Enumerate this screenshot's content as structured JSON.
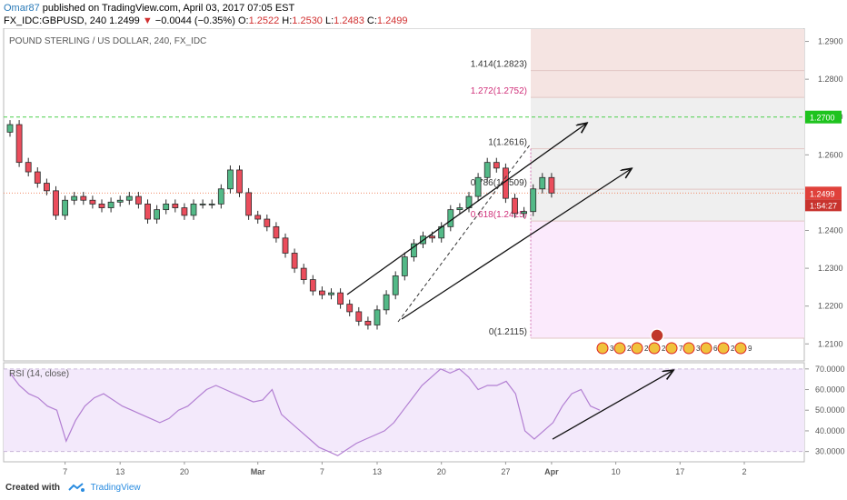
{
  "header": {
    "author": "Omar87",
    "published_text": " published on TradingView.com, April 03, 2017 07:05 EST",
    "symbol_line": "FX_IDC:GBPUSD, 240  1.2499 ",
    "change_arrow": "▼",
    "change_text": " −0.0044 (−0.35%) ",
    "o_label": "O:",
    "o_value": "1.2522",
    "h_label": " H:",
    "h_value": "1.2530",
    "l_label": " L:",
    "l_value": "1.2483",
    "c_label": " C:",
    "c_value": "1.2499"
  },
  "footer": {
    "created_with": "Created with",
    "brand": "TradingView"
  },
  "chart_data": {
    "type": "candlestick",
    "title": "POUND STERLING / US DOLLAR, 240, FX_IDC",
    "price_axis": {
      "range": [
        1.2055,
        1.2935
      ],
      "ticks": [
        "1.2900",
        "1.2800",
        "1.2700",
        "1.2600",
        "1.2400",
        "1.2300",
        "1.2200",
        "1.2100"
      ],
      "tick_values": [
        1.29,
        1.28,
        1.27,
        1.26,
        1.24,
        1.23,
        1.22,
        1.21
      ],
      "last_price_label": "1.2499",
      "countdown_label": "1:54:27",
      "level_label": "1.2700"
    },
    "time_axis": {
      "labels": [
        "7",
        "13",
        "20",
        "Mar",
        "7",
        "13",
        "20",
        "27",
        "Apr",
        "10",
        "17",
        "2"
      ],
      "label_positions": [
        6,
        12,
        19,
        27,
        34,
        40,
        47,
        54,
        59,
        66,
        73,
        80
      ]
    },
    "closes": [
      1.268,
      1.258,
      1.2555,
      1.2525,
      1.2505,
      1.244,
      1.248,
      1.249,
      1.248,
      1.247,
      1.246,
      1.2475,
      1.248,
      1.249,
      1.247,
      1.243,
      1.2455,
      1.247,
      1.246,
      1.244,
      1.247,
      1.247,
      1.247,
      1.251,
      1.256,
      1.25,
      1.244,
      1.243,
      1.241,
      1.238,
      1.234,
      1.23,
      1.227,
      1.224,
      1.223,
      1.2235,
      1.2205,
      1.2185,
      1.216,
      1.215,
      1.219,
      1.223,
      1.228,
      1.233,
      1.2365,
      1.2385,
      1.238,
      1.241,
      1.2455,
      1.246,
      1.249,
      1.254,
      1.258,
      1.2565,
      1.2485,
      1.2445,
      1.245,
      1.251,
      1.254,
      1.2499
    ],
    "fibonacci": [
      {
        "label": "1.414(1.2823)",
        "value": 1.2823
      },
      {
        "label": "1.272(1.2752)",
        "value": 1.2752
      },
      {
        "label": "1(1.2616)",
        "value": 1.2616
      },
      {
        "label": "0.786(1.2509)",
        "value": 1.2509
      },
      {
        "label": "0.618(1.2425)",
        "value": 1.2425
      },
      {
        "label": "0(1.2115)",
        "value": 1.2115
      }
    ],
    "level_line": 1.27,
    "current_price_line": 1.2499,
    "rsi": {
      "title": "RSI (14, close)",
      "range": [
        25,
        73
      ],
      "ticks": [
        "70.0000",
        "60.0000",
        "50.0000",
        "40.0000",
        "30.0000"
      ],
      "tick_values": [
        70,
        60,
        50,
        40,
        30
      ],
      "upper": 70,
      "lower": 30,
      "values": [
        68,
        62,
        58,
        56,
        52,
        50,
        35,
        45,
        52,
        56,
        58,
        55,
        52,
        50,
        48,
        46,
        44,
        46,
        50,
        52,
        56,
        60,
        62,
        60,
        58,
        56,
        54,
        55,
        60,
        48,
        44,
        40,
        36,
        32,
        30,
        28,
        31,
        34,
        36,
        38,
        40,
        44,
        50,
        56,
        62,
        66,
        70,
        68,
        70,
        66,
        60,
        62,
        62,
        64,
        58,
        40,
        36,
        40,
        44,
        52,
        58,
        60,
        52,
        50
      ]
    },
    "events_row": [
      "3",
      "2",
      "2",
      "2",
      "7",
      "3",
      "6",
      "2",
      "9"
    ],
    "colors": {
      "up": "#53b987",
      "down": "#eb4d5c",
      "candle_body_bull": "#ffffff",
      "candle_outline": "#2b2b2b",
      "fib_bg_upper": "#f5e4e2",
      "fib_bg_mid": "#efefef",
      "fib_bg_lower": "#fbeafc",
      "rsi_bg": "#f3e9fb",
      "rsi_line": "#b27fd2",
      "level_line": "#4cd04c",
      "price_line": "#f08c68"
    }
  }
}
